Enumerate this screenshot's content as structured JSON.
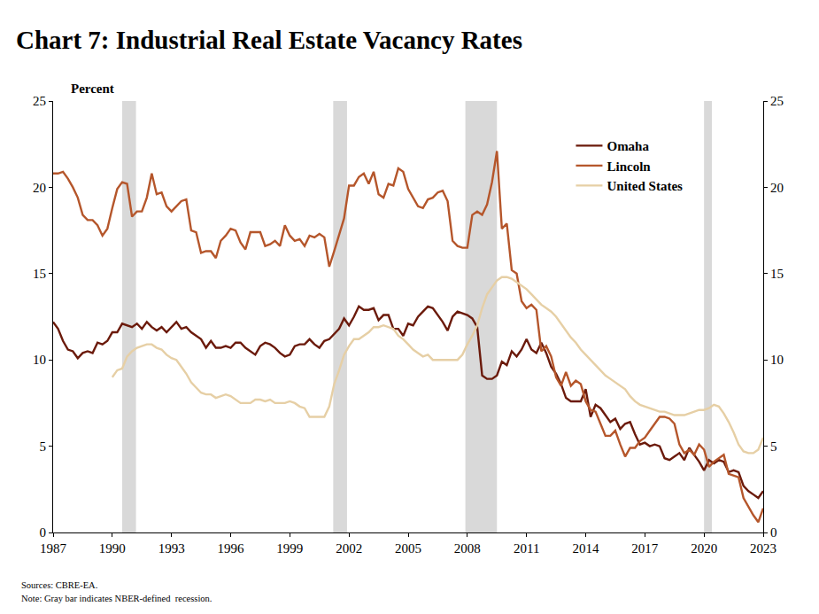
{
  "chart_data": {
    "type": "line",
    "title": "Chart 7: Industrial Real Estate Vacancy Rates",
    "y_label": "Percent",
    "source": "Sources: CBRE-EA.",
    "note": "Note: Gray bar indicates NBER-defined  recession.",
    "legend": "upper right",
    "grid": false,
    "xlim": [
      1987,
      2023
    ],
    "xticks": [
      1987,
      1990,
      1993,
      1996,
      1999,
      2002,
      2005,
      2008,
      2011,
      2014,
      2017,
      2020,
      2023
    ],
    "ylim": [
      0,
      25
    ],
    "yticks": [
      0,
      5,
      10,
      15,
      20,
      25
    ],
    "y2lim": [
      0,
      25
    ],
    "y2ticks": [
      0,
      5,
      10,
      15,
      20,
      25
    ],
    "recessions": [
      {
        "start": 1990.5,
        "end": 1991.2
      },
      {
        "start": 2001.2,
        "end": 2001.9
      },
      {
        "start": 2007.9,
        "end": 2009.5
      },
      {
        "start": 2020.0,
        "end": 2020.4
      }
    ],
    "x": [
      1987,
      1987.25,
      1987.5,
      1987.75,
      1988,
      1988.25,
      1988.5,
      1988.75,
      1989,
      1989.25,
      1989.5,
      1989.75,
      1990,
      1990.25,
      1990.5,
      1990.75,
      1991,
      1991.25,
      1991.5,
      1991.75,
      1992,
      1992.25,
      1992.5,
      1992.75,
      1993,
      1993.25,
      1993.5,
      1993.75,
      1994,
      1994.25,
      1994.5,
      1994.75,
      1995,
      1995.25,
      1995.5,
      1995.75,
      1996,
      1996.25,
      1996.5,
      1996.75,
      1997,
      1997.25,
      1997.5,
      1997.75,
      1998,
      1998.25,
      1998.5,
      1998.75,
      1999,
      1999.25,
      1999.5,
      1999.75,
      2000,
      2000.25,
      2000.5,
      2000.75,
      2001,
      2001.25,
      2001.5,
      2001.75,
      2002,
      2002.25,
      2002.5,
      2002.75,
      2003,
      2003.25,
      2003.5,
      2003.75,
      2004,
      2004.25,
      2004.5,
      2004.75,
      2005,
      2005.25,
      2005.5,
      2005.75,
      2006,
      2006.25,
      2006.5,
      2006.75,
      2007,
      2007.25,
      2007.5,
      2007.75,
      2008,
      2008.25,
      2008.5,
      2008.75,
      2009,
      2009.25,
      2009.5,
      2009.75,
      2010,
      2010.25,
      2010.5,
      2010.75,
      2011,
      2011.25,
      2011.5,
      2011.75,
      2012,
      2012.25,
      2012.5,
      2012.75,
      2013,
      2013.25,
      2013.5,
      2013.75,
      2014,
      2014.25,
      2014.5,
      2014.75,
      2015,
      2015.25,
      2015.5,
      2015.75,
      2016,
      2016.25,
      2016.5,
      2016.75,
      2017,
      2017.25,
      2017.5,
      2017.75,
      2018,
      2018.25,
      2018.5,
      2018.75,
      2019,
      2019.25,
      2019.5,
      2019.75,
      2020,
      2020.25,
      2020.5,
      2020.75,
      2021,
      2021.25,
      2021.5,
      2021.75,
      2022,
      2022.25,
      2022.5,
      2022.75,
      2023
    ],
    "series": [
      {
        "name": "Omaha",
        "color": "#6b1a0b",
        "values": [
          12.2,
          11.8,
          11.1,
          10.6,
          10.5,
          10.1,
          10.4,
          10.5,
          10.4,
          11.0,
          10.9,
          11.1,
          11.6,
          11.6,
          12.1,
          12.0,
          11.9,
          12.1,
          11.8,
          12.2,
          11.9,
          11.7,
          11.9,
          11.6,
          11.9,
          12.2,
          11.8,
          11.9,
          11.6,
          11.4,
          11.2,
          10.7,
          11.1,
          10.7,
          10.7,
          10.8,
          10.7,
          11.0,
          11.0,
          10.7,
          10.5,
          10.3,
          10.8,
          11.0,
          10.9,
          10.7,
          10.4,
          10.2,
          10.3,
          10.8,
          10.9,
          10.9,
          11.2,
          10.9,
          10.7,
          11.1,
          11.2,
          11.5,
          11.8,
          12.4,
          12.0,
          12.5,
          13.1,
          12.9,
          12.9,
          13.0,
          12.3,
          12.6,
          12.6,
          11.8,
          11.8,
          11.4,
          12.1,
          12.0,
          12.5,
          12.8,
          13.1,
          13.0,
          12.6,
          12.2,
          11.7,
          12.5,
          12.8,
          12.7,
          12.6,
          12.4,
          11.9,
          9.1,
          8.9,
          8.9,
          9.1,
          9.9,
          9.7,
          10.5,
          10.2,
          10.6,
          11.2,
          10.6,
          10.4,
          11.0,
          10.4,
          9.6,
          9.2,
          8.6,
          7.8,
          7.6,
          7.6,
          7.6,
          8.3,
          6.7,
          7.4,
          7.2,
          6.8,
          6.4,
          6.6,
          6.0,
          6.3,
          6.4,
          5.7,
          5.1,
          5.2,
          5.0,
          5.1,
          5.0,
          4.3,
          4.2,
          4.4,
          4.6,
          4.2,
          4.9,
          4.5,
          4.1,
          3.6,
          4.2,
          4.0,
          4.2,
          4.1,
          3.5,
          3.6,
          3.5,
          2.7,
          2.4,
          2.2,
          2.0,
          2.4
        ]
      },
      {
        "name": "Lincoln",
        "color": "#b5562b",
        "values": [
          20.8,
          20.8,
          20.9,
          20.5,
          20.0,
          19.4,
          18.4,
          18.1,
          18.1,
          17.8,
          17.2,
          17.6,
          18.8,
          19.9,
          20.3,
          20.2,
          18.3,
          18.6,
          18.6,
          19.4,
          20.8,
          19.6,
          19.7,
          18.9,
          18.6,
          18.9,
          19.2,
          19.3,
          17.5,
          17.4,
          16.2,
          16.3,
          16.3,
          15.9,
          16.9,
          17.2,
          17.6,
          17.5,
          16.8,
          16.4,
          17.4,
          17.4,
          17.4,
          16.6,
          16.7,
          16.9,
          16.6,
          17.8,
          17.2,
          16.9,
          17.0,
          16.6,
          17.2,
          17.1,
          17.3,
          17.1,
          15.4,
          16.3,
          17.2,
          18.2,
          20.1,
          20.1,
          20.6,
          20.8,
          20.2,
          20.9,
          19.6,
          19.4,
          20.2,
          20.1,
          21.1,
          20.9,
          19.9,
          19.4,
          18.9,
          18.8,
          19.3,
          19.4,
          19.7,
          19.8,
          19.2,
          16.9,
          16.6,
          16.5,
          16.5,
          18.4,
          18.6,
          18.4,
          19.0,
          20.3,
          22.1,
          17.6,
          17.9,
          15.2,
          15.0,
          13.4,
          13.0,
          13.2,
          12.9,
          10.5,
          10.8,
          10.2,
          9.0,
          8.5,
          9.3,
          8.5,
          8.8,
          8.6,
          7.6,
          7.1,
          7.0,
          6.3,
          5.6,
          5.6,
          5.9,
          5.1,
          4.4,
          4.9,
          4.9,
          5.3,
          5.5,
          5.9,
          6.3,
          6.7,
          6.7,
          6.6,
          6.3,
          5.1,
          4.6,
          4.8,
          4.5,
          5.1,
          4.8,
          3.8,
          4.1,
          4.3,
          4.5,
          3.4,
          3.3,
          3.2,
          2.0,
          1.5,
          1.0,
          0.6,
          1.4
        ]
      },
      {
        "name": "United States",
        "color": "#e6cfa5",
        "values": [
          null,
          null,
          null,
          null,
          null,
          null,
          null,
          null,
          null,
          null,
          null,
          null,
          9.0,
          9.4,
          9.5,
          10.2,
          10.5,
          10.7,
          10.8,
          10.9,
          10.9,
          10.7,
          10.6,
          10.3,
          10.1,
          10.0,
          9.6,
          9.2,
          8.7,
          8.4,
          8.1,
          8.0,
          8.0,
          7.8,
          7.9,
          8.0,
          7.9,
          7.7,
          7.5,
          7.5,
          7.5,
          7.7,
          7.7,
          7.6,
          7.7,
          7.5,
          7.5,
          7.5,
          7.6,
          7.5,
          7.3,
          7.2,
          6.7,
          6.7,
          6.7,
          6.7,
          7.3,
          8.6,
          9.4,
          10.3,
          10.8,
          11.2,
          11.2,
          11.4,
          11.6,
          11.9,
          11.9,
          12.0,
          11.9,
          11.8,
          11.4,
          11.2,
          10.9,
          10.6,
          10.4,
          10.2,
          10.3,
          10.0,
          10.0,
          10.0,
          10.0,
          10.0,
          10.0,
          10.3,
          10.9,
          11.4,
          12.0,
          13.0,
          13.8,
          14.2,
          14.6,
          14.8,
          14.8,
          14.7,
          14.5,
          14.3,
          14.1,
          13.8,
          13.5,
          13.2,
          13.0,
          12.8,
          12.5,
          12.1,
          11.7,
          11.3,
          11.0,
          10.6,
          10.3,
          10.0,
          9.7,
          9.4,
          9.1,
          8.9,
          8.7,
          8.5,
          8.3,
          7.9,
          7.6,
          7.4,
          7.3,
          7.2,
          7.1,
          7.0,
          7.0,
          6.9,
          6.8,
          6.8,
          6.8,
          6.9,
          7.0,
          7.1,
          7.1,
          7.2,
          7.4,
          7.3,
          6.9,
          6.4,
          5.8,
          5.1,
          4.7,
          4.6,
          4.6,
          4.8,
          5.5
        ]
      }
    ]
  }
}
